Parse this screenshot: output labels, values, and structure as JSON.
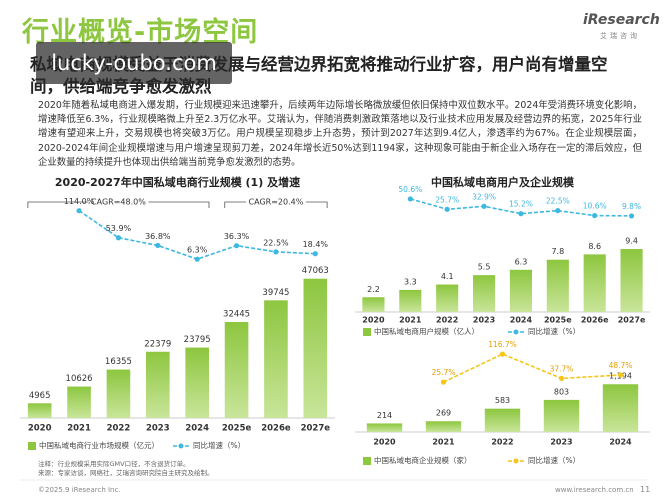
{
  "header": {
    "title": "行业概览-市场空间",
    "logo": "iResearch",
    "logo_sub": "艾瑞咨询"
  },
  "subtitle": "私域电商规模受益于消费发展与经营边界拓宽将推动行业扩容，用户尚有增量空间，供给端竞争愈发激烈",
  "watermark": "lucky-oubo.com",
  "paragraph": "2020年随着私域电商进入爆发期，行业规模迎来迅速攀升，后续两年边际增长略微放缓但依旧保持中双位数水平。2024年受消费环境变化影响，增速降低至6.3%，行业规模略微上升至2.3万亿水平。艾瑞认为，伴随消费刺激政策落地以及行业技术应用发展及经营边界的拓宽，2025年行业增速有望迎来上升，交易规模也将突破3万亿。用户规模呈现稳步上升态势，预计到2027年达到9.4亿人，渗透率约为67%。在企业规模层面，2020-2024年间企业规模增速与用户增速呈现剪刀差，2024年增长近50%达到1194家，这种现象可能由于新企业入场存在一定的滞后效应，但企业数量的持续提升也体现出供给端当前竞争愈发激烈的态势。",
  "chart_data": [
    {
      "type": "bar",
      "title": "2020-2027年中国私域电商行业规模 (1) 及增速",
      "categories": [
        "2020",
        "2021",
        "2022",
        "2023",
        "2024",
        "2025e",
        "2026e",
        "2027e"
      ],
      "series": [
        {
          "name": "中国私域电商行业市场规模（亿元）",
          "color": "#8dc63f",
          "values": [
            4965,
            10626,
            16355,
            22379,
            23795,
            32445,
            39745,
            47063
          ]
        },
        {
          "name": "同比增速（%）",
          "color": "#3db8e0",
          "axis": "y2",
          "values": [
            null,
            114.0,
            53.9,
            36.8,
            6.3,
            36.3,
            22.5,
            18.4
          ],
          "value_labels": [
            null,
            "114.0%",
            "53.9%",
            "36.8%",
            "6.3%",
            "36.3%",
            "22.5%",
            "18.4%"
          ]
        }
      ],
      "annotations": [
        "CAGR=48.0%",
        "CAGR=20.4%"
      ],
      "ylim": [
        0,
        50000
      ],
      "y2lim": [
        0,
        120
      ]
    },
    {
      "type": "bar",
      "title": "中国私域电商用户及企业规模",
      "categories": [
        "2020",
        "2021",
        "2022",
        "2023",
        "2024",
        "2025e",
        "2026e",
        "2027e"
      ],
      "series": [
        {
          "name": "中国私域电商用户规模（亿人）",
          "color": "#8dc63f",
          "values": [
            2.2,
            3.3,
            4.1,
            5.5,
            6.3,
            7.8,
            8.6,
            9.4
          ]
        },
        {
          "name": "同比增速（%）",
          "color": "#3db8e0",
          "axis": "y2",
          "values": [
            null,
            50.6,
            25.7,
            32.9,
            15.2,
            22.5,
            10.6,
            9.8
          ],
          "value_labels": [
            null,
            "50.6%",
            "25.7%",
            "32.9%",
            "15.2%",
            "22.5%",
            "10.6%",
            "9.8%"
          ]
        }
      ],
      "ylim": [
        0,
        10
      ],
      "y2lim": [
        0,
        60
      ]
    },
    {
      "type": "bar",
      "categories": [
        "2020",
        "2021",
        "2022",
        "2023",
        "2024"
      ],
      "series": [
        {
          "name": "中国私域电商企业规模（家）",
          "color": "#8dc63f",
          "values": [
            214,
            269,
            583,
            803,
            1194
          ],
          "value_labels": [
            "214",
            "269",
            "583",
            "803",
            "1,194"
          ]
        },
        {
          "name": "同比增速（%）",
          "color": "#f5c518",
          "axis": "y2",
          "values": [
            null,
            25.7,
            116.7,
            37.7,
            48.7
          ],
          "value_labels": [
            null,
            "25.7%",
            "116.7%",
            "37.7%",
            "48.7%"
          ]
        }
      ],
      "ylim": [
        0,
        1300
      ],
      "y2lim": [
        0,
        130
      ]
    }
  ],
  "notes": [
    "注释：行业规模采用实际GMV口径，不含退货订单。",
    "来源：专家访谈，网络社，艾瑞咨询研究院自主研究及绘制。"
  ],
  "footer": {
    "copyright": "©2025.9 iResearch Inc.",
    "site": "www.iresearch.com.cn",
    "page": "11"
  }
}
